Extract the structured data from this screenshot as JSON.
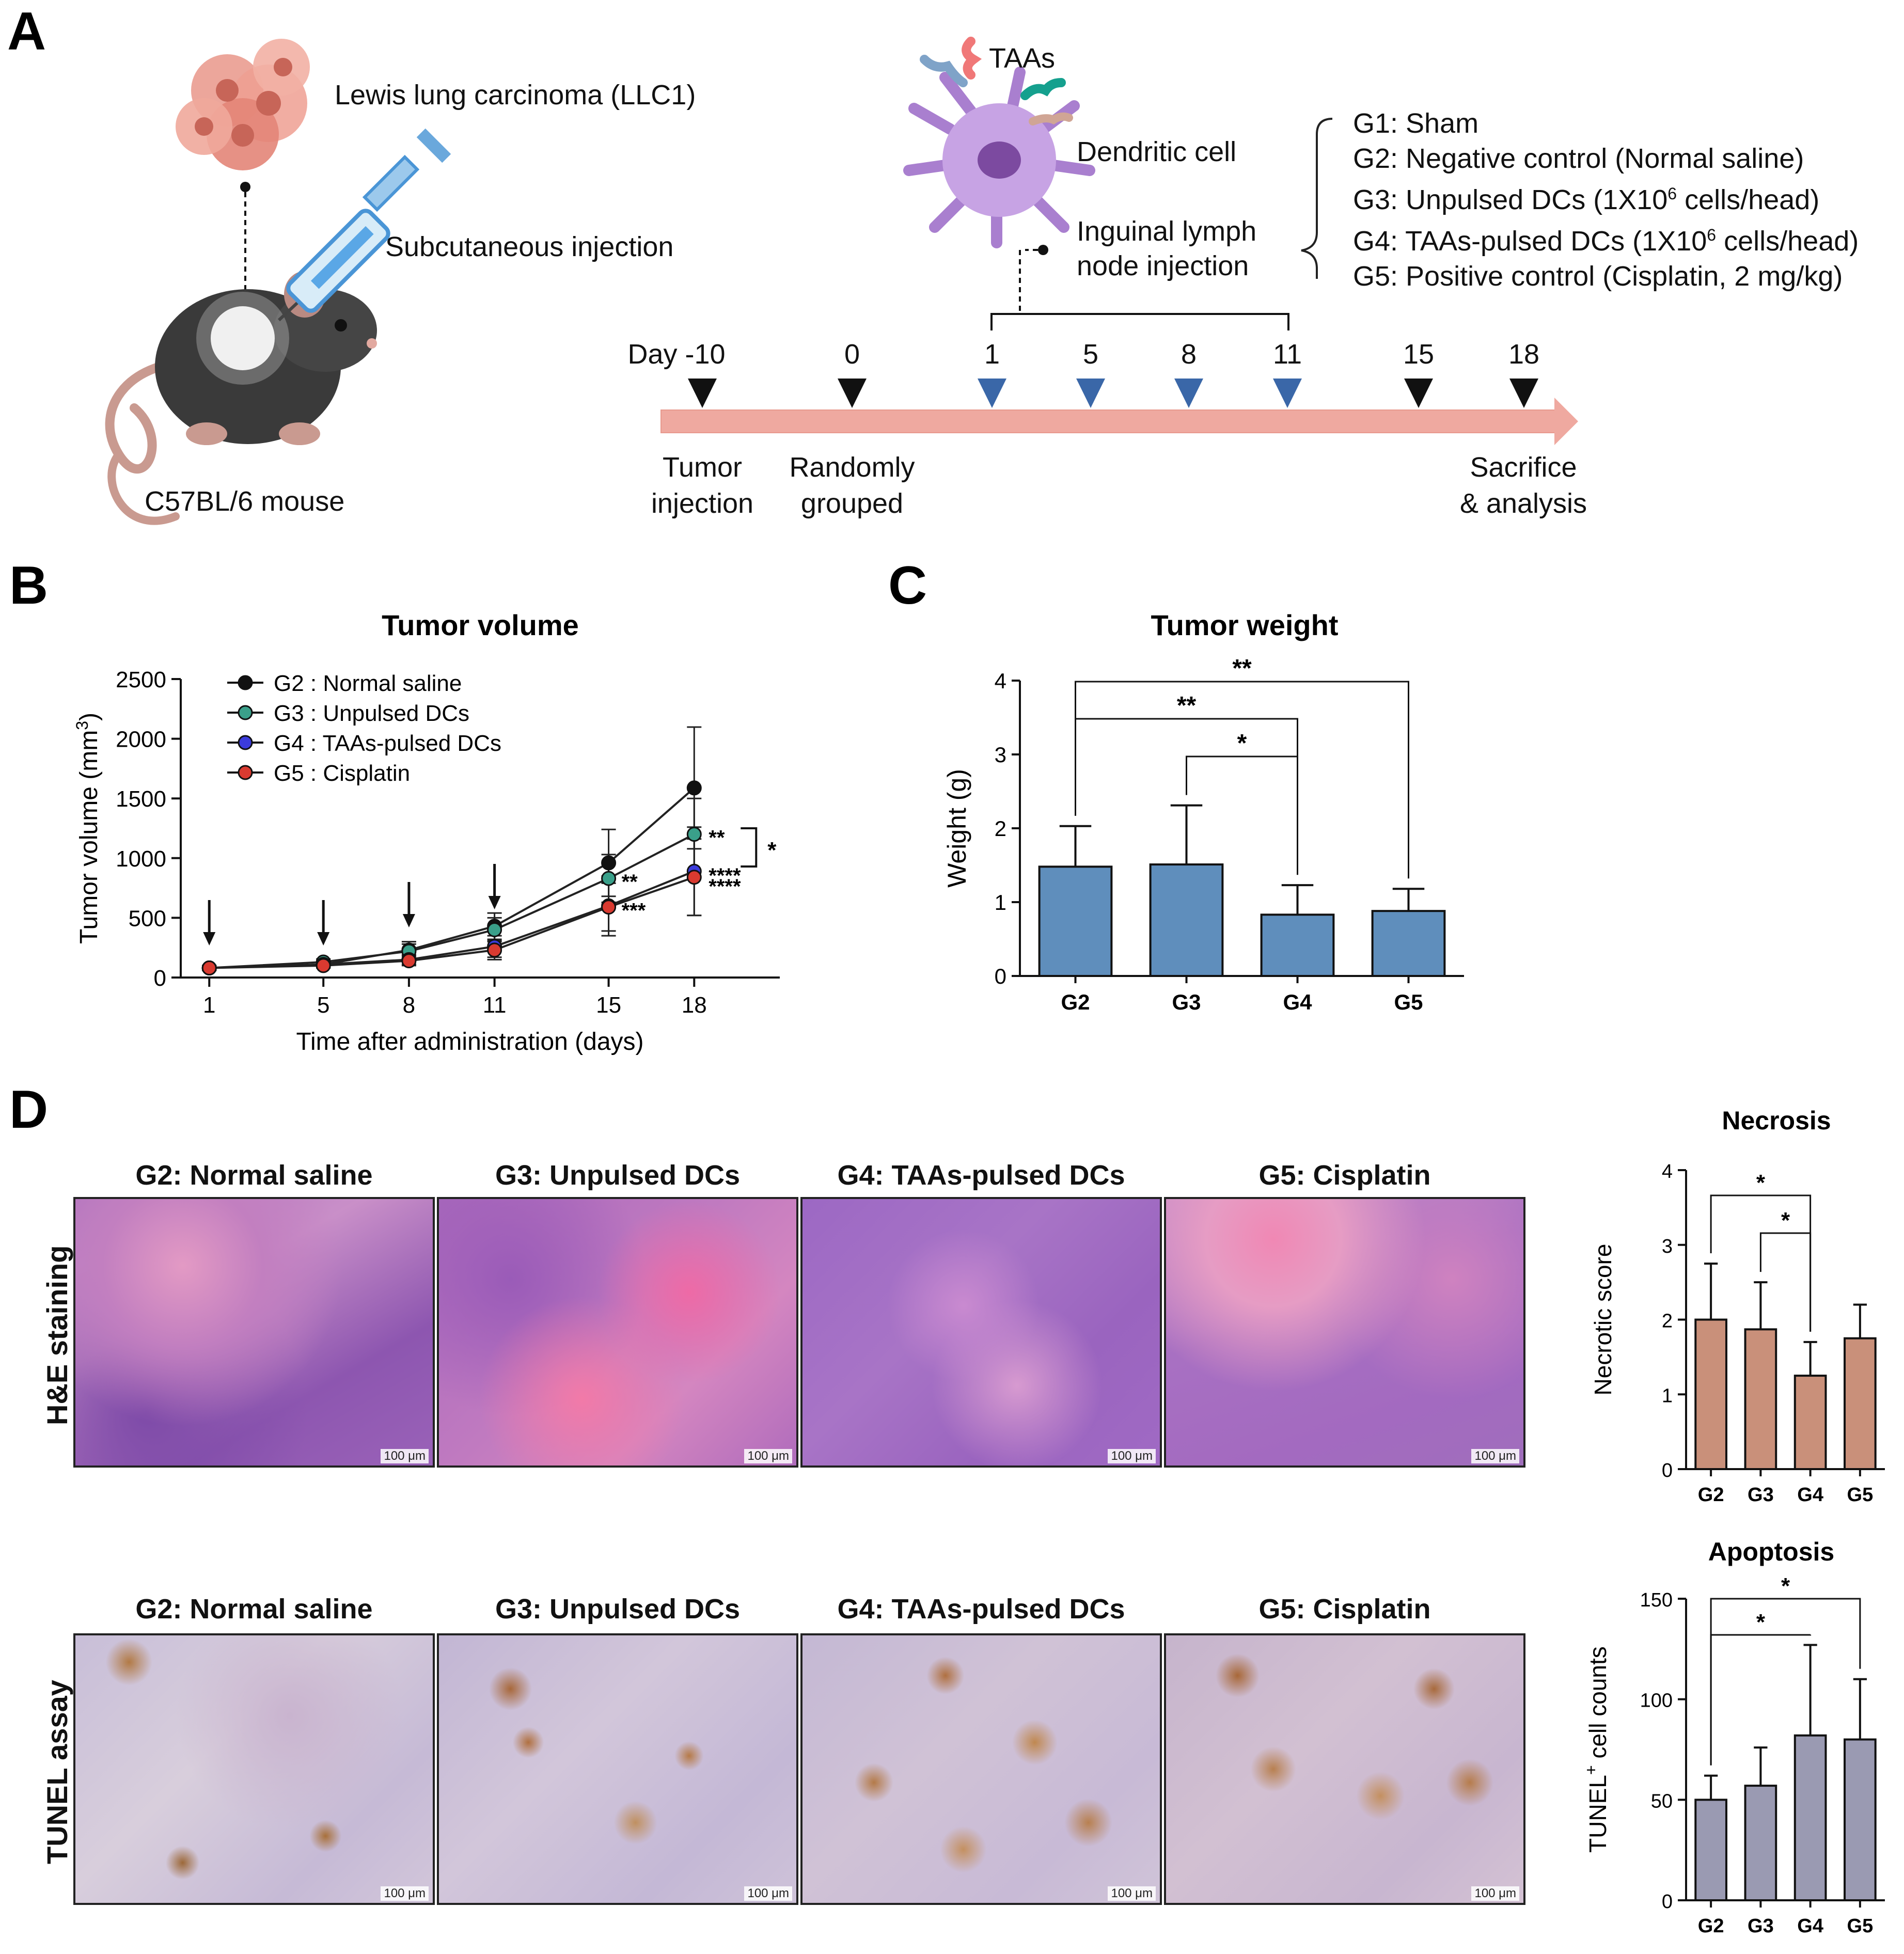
{
  "panels": {
    "a": "A",
    "b": "B",
    "c": "C",
    "d": "D"
  },
  "schematic": {
    "cancer_label": "Lewis lung carcinoma (LLC1)",
    "injection_label": "Subcutaneous injection",
    "mouse_label": "C57BL/6 mouse",
    "taas_label": "TAAs",
    "dc_label": "Dendritic cell",
    "inguinal_line1": "Inguinal lymph",
    "inguinal_line2": "node injection",
    "groups": [
      "G1: Sham",
      "G2: Negative control (Normal saline)",
      "G3: Unpulsed DCs (1X10",
      "G4: TAAs-pulsed DCs (1X10",
      "G5: Positive control (Cisplatin, 2 mg/kg)"
    ],
    "group_sup": "6",
    "group_suffix": " cells/head)",
    "timeline_days": [
      "Day -10",
      "0",
      "1",
      "5",
      "8",
      "11",
      "15",
      "18"
    ],
    "tumor_injection": [
      "Tumor",
      "injection"
    ],
    "random_grouped": [
      "Randomly",
      "grouped"
    ],
    "sacrifice": [
      "Sacrifice",
      "& analysis"
    ]
  },
  "chart_data": [
    {
      "id": "tumor-volume",
      "type": "line",
      "title": "Tumor volume",
      "xlabel": "Time after administration (days)",
      "ylabel": "Tumor volume (mm",
      "ylabel_sup": "3",
      "ylabel_end": ")",
      "x": [
        1,
        5,
        8,
        11,
        15,
        18
      ],
      "xticks": [
        "1",
        "5",
        "8",
        "11",
        "15",
        "18"
      ],
      "ylim": [
        0,
        2500
      ],
      "yticks": [
        "0",
        "500",
        "1000",
        "1500",
        "2000",
        "2500"
      ],
      "series": [
        {
          "name": "G2 : Normal saline",
          "color": "#111111",
          "values": [
            80,
            110,
            230,
            430,
            960,
            1588
          ],
          "err": [
            20,
            25,
            70,
            110,
            280,
            510
          ]
        },
        {
          "name": "G3 : Unpulsed DCs",
          "color": "#3aa08a",
          "values": [
            80,
            130,
            220,
            400,
            830,
            1200
          ],
          "err": [
            20,
            25,
            60,
            100,
            200,
            300
          ]
        },
        {
          "name": "G4 : TAAs-pulsed DCs",
          "color": "#3b3bdc",
          "values": [
            80,
            110,
            150,
            260,
            600,
            890
          ],
          "err": [
            15,
            20,
            40,
            90,
            250,
            370
          ]
        },
        {
          "name": "G5 : Cisplatin",
          "color": "#d93a30",
          "values": [
            80,
            100,
            140,
            230,
            590,
            840
          ],
          "err": [
            15,
            20,
            40,
            80,
            200,
            320
          ]
        }
      ],
      "arrows_at": [
        1,
        5,
        8,
        11
      ],
      "annotations": {
        "d15_g3": "**",
        "d15_g4": "***",
        "d18_g3": "**",
        "d18_g4": "****",
        "d18_g5": "****",
        "bracket": "*"
      }
    },
    {
      "id": "tumor-weight",
      "type": "bar",
      "title": "Tumor weight",
      "ylabel": "Weight (g)",
      "categories": [
        "G2",
        "G3",
        "G4",
        "G5"
      ],
      "values": [
        1.48,
        1.51,
        0.83,
        0.88
      ],
      "err": [
        0.55,
        0.8,
        0.4,
        0.3
      ],
      "ylim": [
        0,
        4
      ],
      "yticks": [
        "0",
        "1",
        "2",
        "3",
        "4"
      ],
      "color": "#5f8ebc",
      "significance": [
        {
          "from": "G2",
          "to": "G5",
          "label": "**"
        },
        {
          "from": "G2",
          "to": "G4",
          "label": "**"
        },
        {
          "from": "G3",
          "to": "G4",
          "label": "*"
        }
      ]
    },
    {
      "id": "necrosis",
      "type": "bar",
      "title": "Necrosis",
      "ylabel": "Necrotic score",
      "categories": [
        "G2",
        "G3",
        "G4",
        "G5"
      ],
      "values": [
        2.0,
        1.87,
        1.25,
        1.75
      ],
      "err": [
        0.75,
        0.63,
        0.45,
        0.45
      ],
      "ylim": [
        0,
        4
      ],
      "yticks": [
        "0",
        "1",
        "2",
        "3",
        "4"
      ],
      "color": "#c9907a",
      "significance": [
        {
          "from": "G2",
          "to": "G4",
          "label": "*"
        },
        {
          "from": "G3",
          "to": "G4",
          "label": "*"
        }
      ]
    },
    {
      "id": "apoptosis",
      "type": "bar",
      "title": "Apoptosis",
      "ylabel": "TUNEL",
      "ylabel_sup": "+",
      "ylabel_end": " cell counts",
      "categories": [
        "G2",
        "G3",
        "G4",
        "G5"
      ],
      "values": [
        50,
        57,
        82,
        80
      ],
      "err": [
        12,
        19,
        45,
        30
      ],
      "ylim": [
        0,
        150
      ],
      "yticks": [
        "0",
        "50",
        "100",
        "150"
      ],
      "color": "#9a9ab2",
      "significance": [
        {
          "from": "G2",
          "to": "G5",
          "label": "*"
        },
        {
          "from": "G2",
          "to": "G4",
          "label": "*"
        }
      ]
    }
  ],
  "histology": {
    "he_row_label": "H&E staining",
    "tunel_row_label": "TUNEL assay",
    "titles": [
      "G2: Normal saline",
      "G3: Unpulsed DCs",
      "G4: TAAs-pulsed DCs",
      "G5: Cisplatin"
    ],
    "scale_bar": "100 μm"
  }
}
